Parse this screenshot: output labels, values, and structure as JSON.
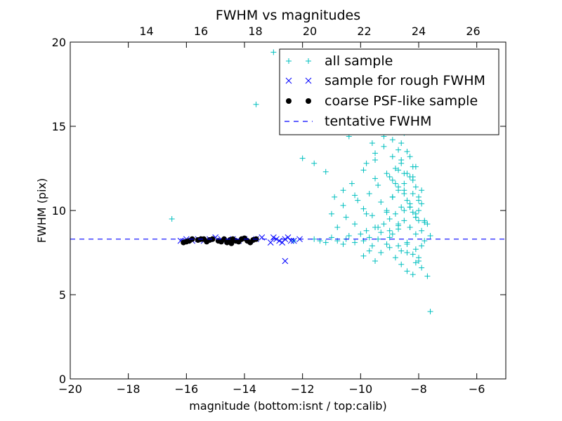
{
  "chart_data": {
    "type": "scatter",
    "title": "FWHM vs magnitudes",
    "xlabel": "magnitude (bottom:isnt / top:calib)",
    "ylabel": "FWHM (pix)",
    "xlim": [
      -20,
      -5
    ],
    "ylim": [
      0,
      20
    ],
    "top_xlim": [
      11.2,
      27.2
    ],
    "x_ticks": [
      -20,
      -18,
      -16,
      -14,
      -12,
      -10,
      -8,
      -6
    ],
    "x_tick_labels": [
      "−20",
      "−18",
      "−16",
      "−14",
      "−12",
      "−10",
      "−8",
      "−6"
    ],
    "y_ticks": [
      0,
      5,
      10,
      15,
      20
    ],
    "y_tick_labels": [
      "0",
      "5",
      "10",
      "15",
      "20"
    ],
    "top_ticks": [
      14,
      16,
      18,
      20,
      22,
      24,
      26
    ],
    "top_tick_labels": [
      "14",
      "16",
      "18",
      "20",
      "22",
      "24",
      "26"
    ],
    "grid": false,
    "legend_position": "top-right",
    "series": [
      {
        "name": "all sample",
        "marker": "plus",
        "color": "#00bfbf",
        "x": [
          -16.5,
          -13.6,
          -13.0,
          -12.3,
          -11.6,
          -11.4,
          -11.2,
          -11.0,
          -10.8,
          -10.6,
          -10.5,
          -10.4,
          -10.2,
          -10.0,
          -9.9,
          -9.8,
          -9.7,
          -9.6,
          -9.5,
          -9.4,
          -9.3,
          -9.2,
          -9.1,
          -9.0,
          -8.9,
          -8.8,
          -8.7,
          -8.6,
          -8.5,
          -8.4,
          -8.3,
          -8.2,
          -8.1,
          -8.0,
          -7.9,
          -7.8,
          -7.6,
          -10.8,
          -10.5,
          -10.2,
          -9.9,
          -9.6,
          -9.3,
          -9.1,
          -8.9,
          -8.7,
          -8.5,
          -8.3,
          -8.1,
          -7.9,
          -7.7,
          -11.0,
          -10.6,
          -10.1,
          -9.7,
          -9.4,
          -9.0,
          -8.8,
          -8.6,
          -8.4,
          -8.2,
          -8.0,
          -7.8,
          -9.8,
          -9.5,
          -9.2,
          -8.9,
          -8.7,
          -8.5,
          -8.3,
          -8.1,
          -7.9,
          -10.3,
          -9.9,
          -9.5,
          -9.1,
          -8.8,
          -8.6,
          -8.4,
          -8.2,
          -8.0,
          -9.6,
          -9.2,
          -8.9,
          -8.7,
          -8.5,
          -8.3,
          -8.1,
          -9.3,
          -9.0,
          -8.8,
          -8.6,
          -8.4,
          -8.2,
          -8.0,
          -9.0,
          -8.7,
          -8.5,
          -8.3,
          -8.1,
          -8.8,
          -8.6,
          -8.4,
          -8.2,
          -8.5,
          -8.3,
          -9.9,
          -9.7,
          -9.5,
          -8.9,
          -8.7,
          -8.5,
          -8.3,
          -8.1,
          -7.9,
          -8.6,
          -8.4,
          -8.2,
          -8.0,
          -7.7,
          -7.9,
          -8.1,
          -8.4,
          -8.7,
          -9.0,
          -9.4,
          -9.8,
          -10.2,
          -10.6,
          -11.2,
          -11.6,
          -12.0,
          -10.9,
          -10.4,
          -9.2,
          -8.8,
          -8.6,
          -8.2,
          -7.8,
          -7.6,
          -8.9,
          -8.5,
          -8.3,
          -8.0,
          -9.5,
          -9.1,
          -8.7,
          -8.4,
          -8.1
        ],
        "y": [
          9.5,
          16.3,
          19.4,
          8.2,
          8.3,
          8.2,
          8.1,
          8.4,
          8.2,
          8.0,
          8.3,
          8.5,
          8.1,
          8.6,
          8.2,
          8.8,
          8.4,
          7.9,
          9.0,
          8.3,
          8.7,
          9.2,
          8.0,
          9.5,
          8.6,
          9.8,
          9.1,
          10.2,
          9.4,
          10.6,
          9.0,
          11.0,
          9.6,
          10.0,
          8.8,
          9.3,
          8.5,
          9.0,
          9.6,
          9.2,
          10.1,
          9.7,
          10.5,
          9.9,
          10.8,
          11.2,
          11.6,
          12.0,
          11.4,
          10.4,
          9.2,
          9.8,
          10.3,
          10.6,
          11.0,
          11.5,
          12.0,
          12.5,
          13.0,
          12.2,
          11.8,
          10.6,
          9.4,
          12.8,
          13.4,
          13.8,
          14.2,
          13.6,
          14.6,
          13.2,
          12.6,
          11.2,
          11.6,
          12.4,
          13.0,
          12.2,
          11.6,
          12.8,
          13.5,
          12.0,
          10.8,
          14.0,
          14.4,
          13.2,
          12.4,
          11.0,
          10.2,
          9.8,
          7.5,
          7.8,
          7.2,
          7.6,
          8.0,
          7.4,
          7.0,
          8.8,
          9.2,
          10.0,
          10.4,
          9.6,
          15.8,
          15.2,
          14.8,
          12.6,
          16.2,
          17.0,
          7.3,
          7.6,
          7.0,
          10.8,
          11.4,
          12.2,
          9.0,
          8.6,
          7.9,
          6.8,
          6.4,
          6.2,
          7.2,
          6.1,
          6.6,
          6.9,
          7.5,
          7.9,
          8.4,
          9.0,
          9.8,
          10.9,
          11.2,
          12.3,
          12.8,
          13.1,
          10.8,
          14.4,
          15.6,
          18.0,
          14.0,
          9.9,
          8.2,
          4.0,
          11.8,
          11.2,
          10.2,
          9.4,
          11.9,
          10.0,
          8.9,
          8.1,
          7.7
        ]
      },
      {
        "name": "sample for rough FWHM",
        "marker": "x",
        "color": "#0000ff",
        "x": [
          -16.2,
          -16.0,
          -15.8,
          -15.6,
          -15.4,
          -15.2,
          -15.0,
          -14.8,
          -14.6,
          -14.4,
          -14.2,
          -14.0,
          -13.8,
          -13.6,
          -13.4,
          -13.1,
          -13.0,
          -12.9,
          -12.8,
          -12.7,
          -12.6,
          -12.5,
          -12.4,
          -12.3,
          -12.1,
          -12.6
        ],
        "y": [
          8.2,
          8.3,
          8.2,
          8.3,
          8.2,
          8.3,
          8.4,
          8.3,
          8.2,
          8.3,
          8.2,
          8.3,
          8.2,
          8.3,
          8.4,
          8.1,
          8.4,
          8.3,
          8.2,
          8.1,
          8.3,
          8.4,
          8.2,
          8.2,
          8.3,
          7.0
        ]
      },
      {
        "name": "coarse PSF-like sample",
        "marker": "circle",
        "color": "#000000",
        "x": [
          -16.1,
          -16.0,
          -15.9,
          -15.8,
          -15.6,
          -15.5,
          -15.4,
          -15.3,
          -15.2,
          -15.1,
          -14.9,
          -14.8,
          -14.7,
          -14.6,
          -14.5,
          -14.45,
          -14.4,
          -14.3,
          -14.2,
          -14.1,
          -14.0,
          -13.9,
          -13.8,
          -13.7,
          -13.6
        ],
        "y": [
          8.1,
          8.15,
          8.2,
          8.3,
          8.25,
          8.3,
          8.3,
          8.15,
          8.25,
          8.3,
          8.2,
          8.15,
          8.3,
          8.1,
          8.25,
          8.05,
          8.3,
          8.2,
          8.15,
          8.3,
          8.35,
          8.2,
          8.1,
          8.25,
          8.3
        ]
      },
      {
        "name": "tentative FWHM",
        "marker": "dashed-line",
        "color": "#0000ff",
        "y_value": 8.3
      }
    ]
  }
}
